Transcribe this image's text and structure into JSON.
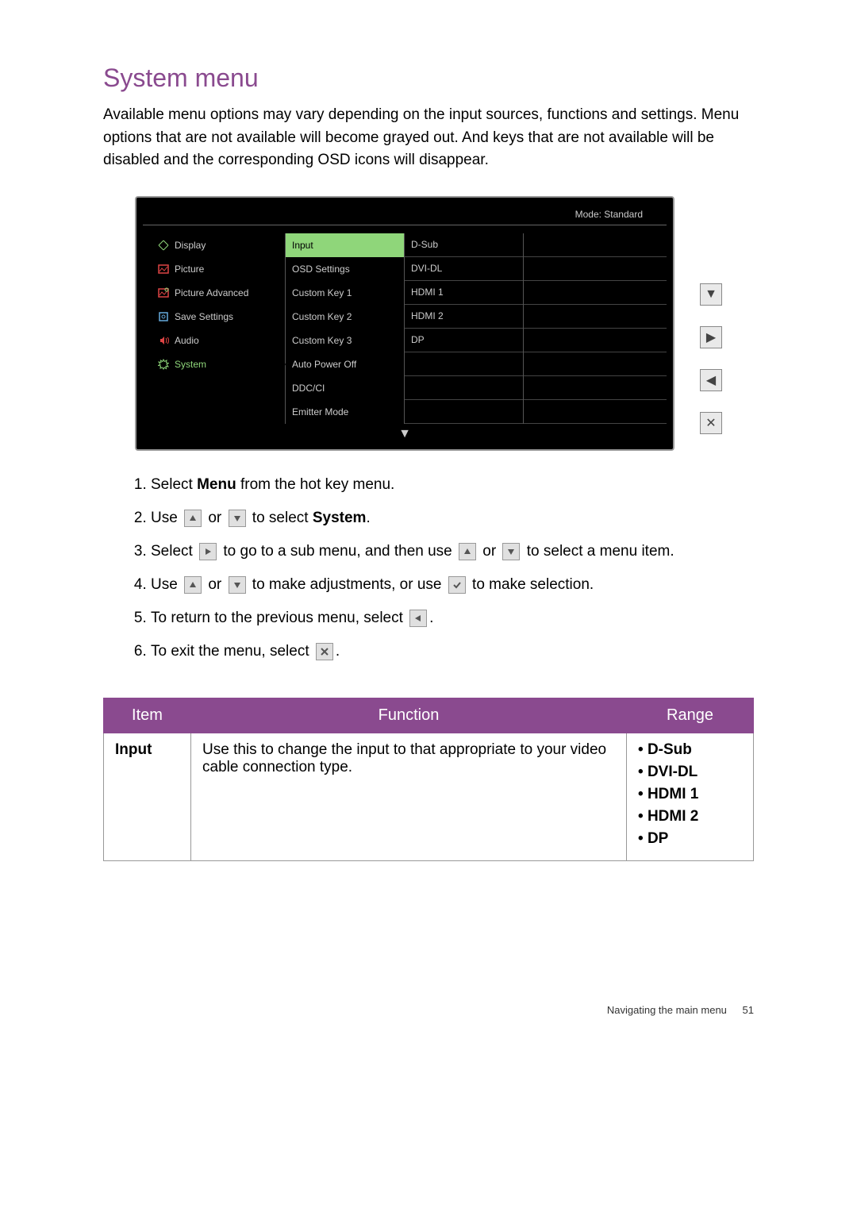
{
  "title": "System menu",
  "intro": "Available menu options may vary depending on the input sources, functions and settings. Menu options that are not available will become grayed out. And keys that are not available will be disabled and the corresponding OSD icons will disappear.",
  "osd": {
    "mode_label": "Mode: Standard",
    "background_color": "#000000",
    "border_color": "#999999",
    "highlight_color": "#8fd67a",
    "text_color": "#cccccc",
    "col1": [
      {
        "label": "Display",
        "icon": "display"
      },
      {
        "label": "Picture",
        "icon": "picture"
      },
      {
        "label": "Picture Advanced",
        "icon": "picture-adv"
      },
      {
        "label": "Save Settings",
        "icon": "save"
      },
      {
        "label": "Audio",
        "icon": "audio"
      },
      {
        "label": "System",
        "icon": "system",
        "selected": true
      }
    ],
    "col2": [
      {
        "label": "Input",
        "selected": true
      },
      {
        "label": "OSD Settings"
      },
      {
        "label": "Custom Key 1"
      },
      {
        "label": "Custom Key 2"
      },
      {
        "label": "Custom Key 3"
      },
      {
        "label": "Auto Power Off"
      },
      {
        "label": "DDC/CI"
      },
      {
        "label": "Emitter Mode"
      }
    ],
    "col3": [
      "D-Sub",
      "DVI-DL",
      "HDMI 1",
      "HDMI 2",
      "DP",
      "",
      "",
      ""
    ],
    "col4_rows": 8
  },
  "steps": {
    "s1_a": "Select ",
    "s1_b": "Menu",
    "s1_c": " from the hot key menu.",
    "s2_a": "Use ",
    "s2_b": " or ",
    "s2_c": " to select ",
    "s2_d": "System",
    "s2_e": ".",
    "s3_a": "Select ",
    "s3_b": " to go to a sub menu, and then use ",
    "s3_c": " or ",
    "s3_d": " to select a menu item.",
    "s4_a": "Use ",
    "s4_b": " or ",
    "s4_c": " to make adjustments, or use ",
    "s4_d": " to make selection.",
    "s5_a": "To return to the previous menu, select ",
    "s5_b": ".",
    "s6_a": "To exit the menu, select ",
    "s6_b": "."
  },
  "table": {
    "header_bg": "#8a4a8f",
    "columns": [
      "Item",
      "Function",
      "Range"
    ],
    "col_widths": [
      "110px",
      "auto",
      "160px"
    ],
    "row": {
      "item": "Input",
      "function": "Use this to change the input to that appropriate to your video cable connection type.",
      "range": [
        "D-Sub",
        "DVI-DL",
        "HDMI 1",
        "HDMI 2",
        "DP"
      ]
    }
  },
  "footer": {
    "section": "Navigating the main menu",
    "page": "51"
  }
}
